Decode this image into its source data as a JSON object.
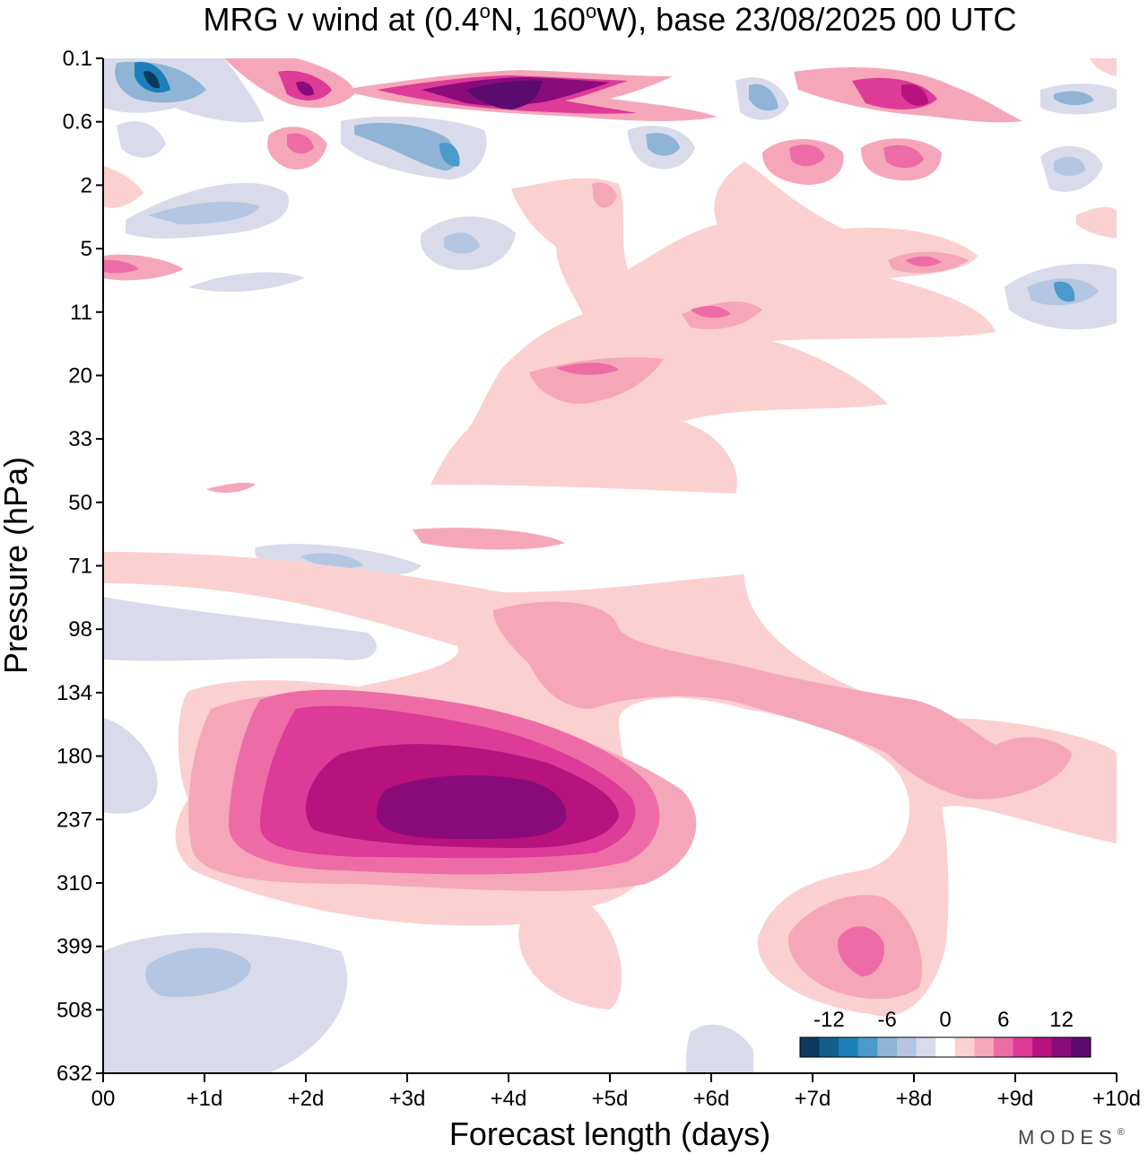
{
  "chart_data": {
    "type": "heatmap",
    "title": "MRG v wind at (0.4°N, 160°W),  base 23/08/2025  00 UTC",
    "title_parts": {
      "prefix": "MRG v wind at (0.4",
      "deg1": "o",
      "mid": "N, 160",
      "deg2": "o",
      "suffix": "W),  base 23/08/2025  00 UTC"
    },
    "xlabel": "Forecast length (days)",
    "ylabel": "Pressure (hPa)",
    "x_ticks": [
      "00",
      "+1d",
      "+2d",
      "+3d",
      "+4d",
      "+5d",
      "+6d",
      "+7d",
      "+8d",
      "+9d",
      "+10d"
    ],
    "x_range": [
      0,
      10
    ],
    "y_ticks": [
      "0.1",
      "0.6",
      "2",
      "5",
      "11",
      "20",
      "33",
      "50",
      "71",
      "98",
      "134",
      "180",
      "237",
      "310",
      "399",
      "508",
      "632"
    ],
    "y_scale": "log",
    "colorbar": {
      "tick_labels": [
        "-12",
        "-6",
        "0",
        "6",
        "12"
      ],
      "tick_values": [
        -12,
        -6,
        0,
        6,
        12
      ],
      "levels": [
        -15,
        -13,
        -11,
        -9,
        -7,
        -5,
        -3,
        -1,
        1,
        3,
        5,
        7,
        9,
        11,
        13,
        15
      ],
      "colors": [
        "#0b3a5c",
        "#125f8c",
        "#1e7fb8",
        "#4a9bcb",
        "#8fb4d6",
        "#b4c6e2",
        "#d9dbeb",
        "#ffffff",
        "#fbd0d0",
        "#f5a7b9",
        "#ee6ca6",
        "#de3a97",
        "#b8127e",
        "#8a0b7a",
        "#5b0a6e"
      ],
      "placement": "bottom-right"
    },
    "features": [
      {
        "label": "positive maximum",
        "sign": "+",
        "approx_value": 14,
        "day": 3.6,
        "pressure_hPa": 237
      },
      {
        "label": "positive maximum",
        "sign": "+",
        "approx_value": 15,
        "day": 4.0,
        "pressure_hPa": 0.3
      },
      {
        "label": "positive maximum",
        "sign": "+",
        "approx_value": 8,
        "day": 7.5,
        "pressure_hPa": 400
      },
      {
        "label": "negative minimum",
        "sign": "-",
        "approx_value": -12,
        "day": 0.5,
        "pressure_hPa": 0.25
      },
      {
        "label": "negative minimum",
        "sign": "-",
        "approx_value": -7,
        "day": 3.5,
        "pressure_hPa": 1.5
      },
      {
        "label": "negative minimum",
        "sign": "-",
        "approx_value": -5,
        "day": 0.9,
        "pressure_hPa": 430
      }
    ]
  },
  "branding": {
    "logo_text": "MODES",
    "mark": "®"
  }
}
